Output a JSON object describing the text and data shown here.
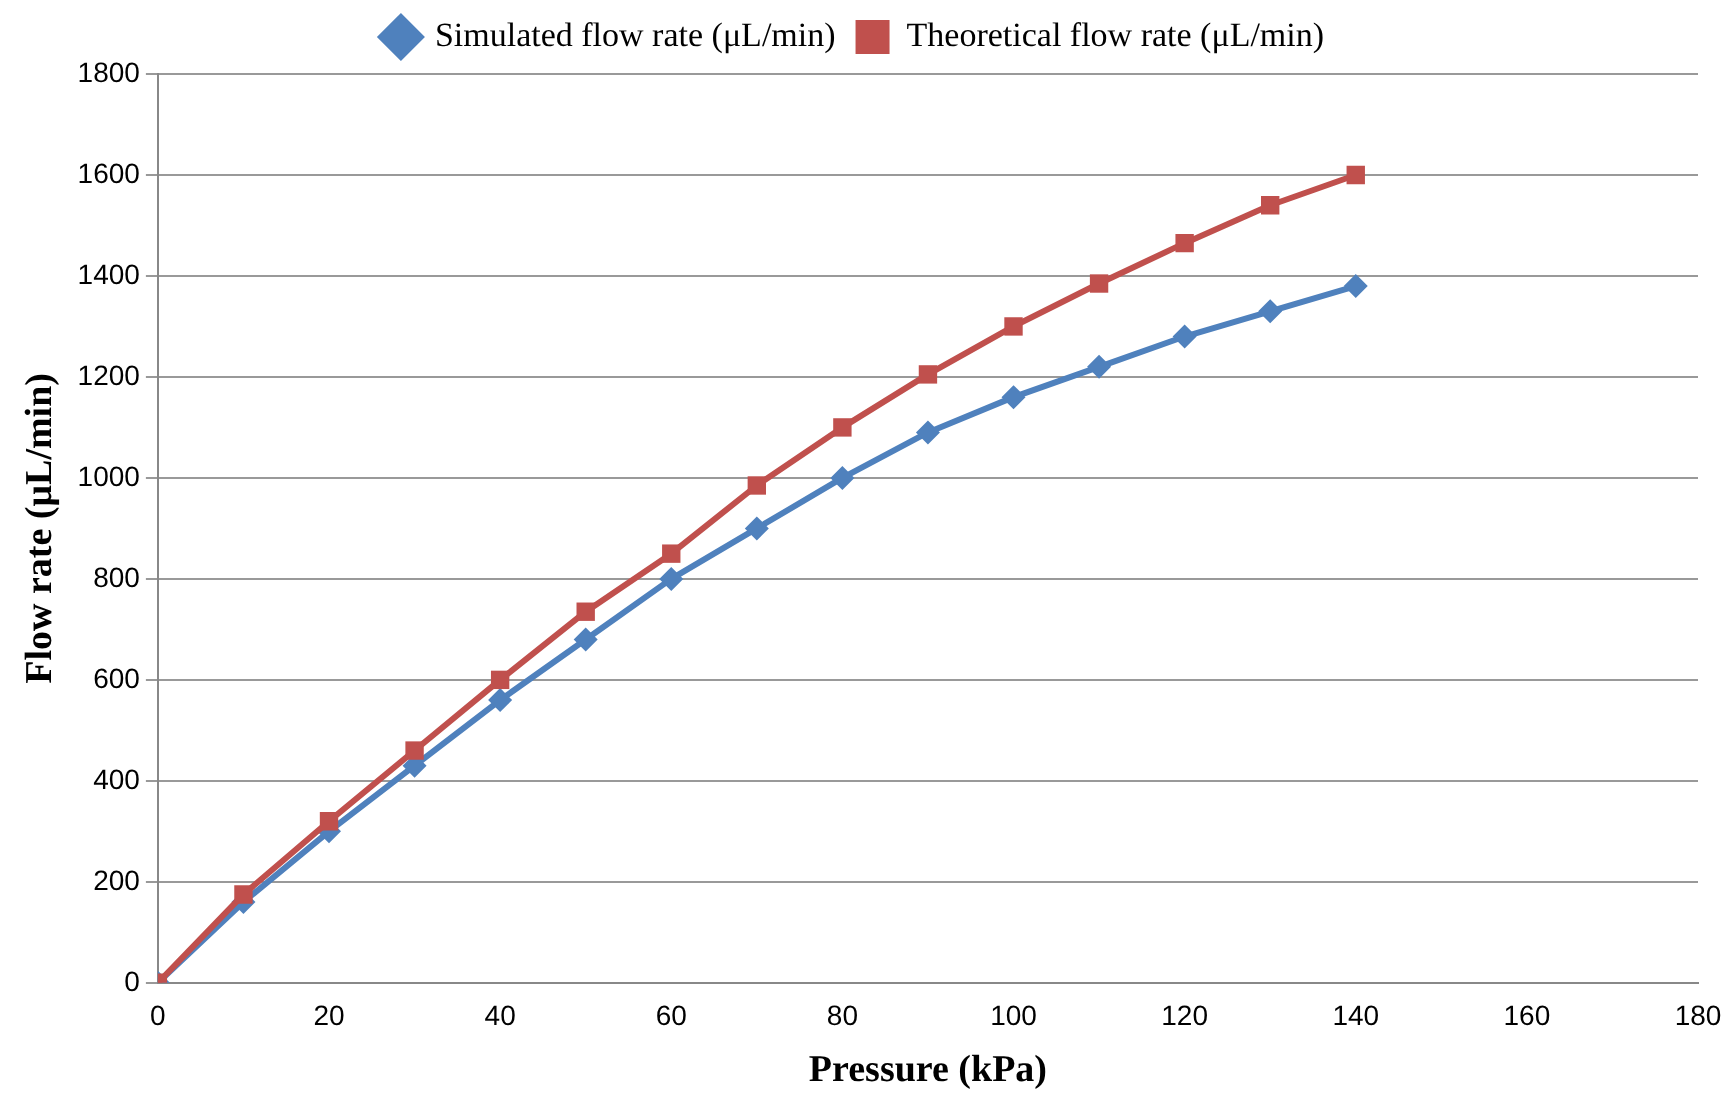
{
  "chart_data": {
    "type": "line",
    "xlabel": "Pressure (kPa)",
    "ylabel": "Flow rate (μL/min)",
    "x": [
      0,
      10,
      20,
      30,
      40,
      50,
      60,
      70,
      80,
      90,
      100,
      110,
      120,
      130,
      140
    ],
    "series": [
      {
        "name": "Simulated flow rate (μL/min)",
        "color": "#4f81bd",
        "marker": "diamond",
        "values": [
          0,
          160,
          300,
          430,
          560,
          680,
          800,
          900,
          1000,
          1090,
          1160,
          1220,
          1280,
          1330,
          1380
        ]
      },
      {
        "name": "Theoretical flow rate (μL/min)",
        "color": "#c0504d",
        "marker": "square",
        "values": [
          0,
          175,
          320,
          460,
          600,
          735,
          850,
          985,
          1100,
          1205,
          1300,
          1385,
          1465,
          1540,
          1600
        ]
      }
    ],
    "xlim": [
      0,
      180
    ],
    "xticks": [
      0,
      20,
      40,
      60,
      80,
      100,
      120,
      140,
      160,
      180
    ],
    "ylim": [
      0,
      1800
    ],
    "yticks": [
      0,
      200,
      400,
      600,
      800,
      1000,
      1200,
      1400,
      1600,
      1800
    ],
    "grid": "y",
    "legend": "top",
    "line_style": "solid"
  }
}
